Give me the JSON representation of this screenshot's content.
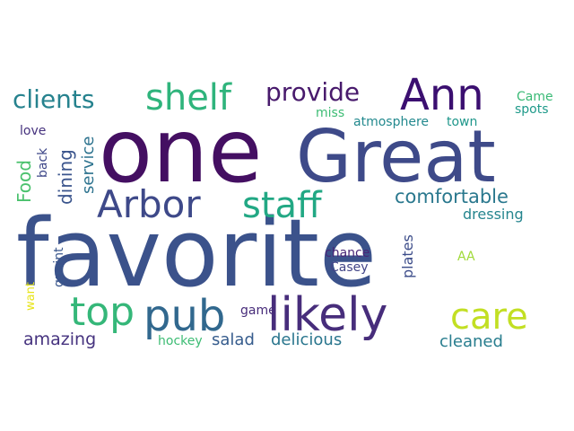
{
  "words": [
    {
      "key": "favorite",
      "text": "favorite",
      "color": "#3b528b"
    },
    {
      "key": "one",
      "text": "one",
      "color": "#440f62"
    },
    {
      "key": "great",
      "text": "Great",
      "color": "#3e4a89"
    },
    {
      "key": "ann",
      "text": "Ann",
      "color": "#3b0f70"
    },
    {
      "key": "arbor",
      "text": "Arbor",
      "color": "#3e4989"
    },
    {
      "key": "staff",
      "text": "staff",
      "color": "#22a884"
    },
    {
      "key": "pub",
      "text": "pub",
      "color": "#31688e"
    },
    {
      "key": "top",
      "text": "top",
      "color": "#35b779"
    },
    {
      "key": "likely",
      "text": "likely",
      "color": "#472d7b"
    },
    {
      "key": "care",
      "text": "care",
      "color": "#c2df23"
    },
    {
      "key": "shelf",
      "text": "shelf",
      "color": "#2fb47c"
    },
    {
      "key": "provide",
      "text": "provide",
      "color": "#481a6c"
    },
    {
      "key": "clients",
      "text": "clients",
      "color": "#26828e"
    },
    {
      "key": "comfortable",
      "text": "comfortable",
      "color": "#2a788e"
    },
    {
      "key": "dressing",
      "text": "dressing",
      "color": "#25858e"
    },
    {
      "key": "food",
      "text": "Food",
      "color": "#4ac16d"
    },
    {
      "key": "dining",
      "text": "dining",
      "color": "#3a548c"
    },
    {
      "key": "service",
      "text": "service",
      "color": "#2c728e"
    },
    {
      "key": "love",
      "text": "love",
      "color": "#46327e"
    },
    {
      "key": "back",
      "text": "back",
      "color": "#3f4889"
    },
    {
      "key": "miss",
      "text": "miss",
      "color": "#3dbc74"
    },
    {
      "key": "atmosphere",
      "text": "atmosphere",
      "color": "#23898e"
    },
    {
      "key": "town",
      "text": "town",
      "color": "#1f978b"
    },
    {
      "key": "came",
      "text": "Came",
      "color": "#3aba76"
    },
    {
      "key": "spots",
      "text": "spots",
      "color": "#1f9a8a"
    },
    {
      "key": "amazing",
      "text": "amazing",
      "color": "#46337f"
    },
    {
      "key": "salad",
      "text": "salad",
      "color": "#365c8d"
    },
    {
      "key": "delicious",
      "text": "delicious",
      "color": "#2a768e"
    },
    {
      "key": "cleaned",
      "text": "cleaned",
      "color": "#287d8e"
    },
    {
      "key": "chance",
      "text": "chance",
      "color": "#482576"
    },
    {
      "key": "casey",
      "text": "Casey",
      "color": "#414487"
    },
    {
      "key": "plates",
      "text": "plates",
      "color": "#3d4d8a"
    },
    {
      "key": "aa",
      "text": "AA",
      "color": "#a0da39"
    },
    {
      "key": "quaint",
      "text": "quaint",
      "color": "#39568c"
    },
    {
      "key": "want",
      "text": "want",
      "color": "#e7e419"
    },
    {
      "key": "game",
      "text": "game",
      "color": "#472c7a"
    },
    {
      "key": "hockey",
      "text": "hockey",
      "color": "#3dbc74"
    }
  ]
}
